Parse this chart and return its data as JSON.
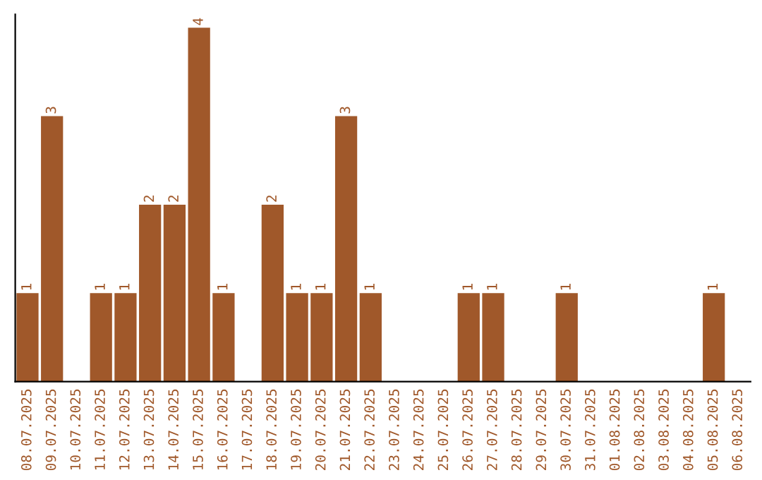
{
  "chart_data": {
    "type": "bar",
    "categories": [
      "08.07.2025",
      "09.07.2025",
      "10.07.2025",
      "11.07.2025",
      "12.07.2025",
      "13.07.2025",
      "14.07.2025",
      "15.07.2025",
      "16.07.2025",
      "17.07.2025",
      "18.07.2025",
      "19.07.2025",
      "20.07.2025",
      "21.07.2025",
      "22.07.2025",
      "23.07.2025",
      "24.07.2025",
      "25.07.2025",
      "26.07.2025",
      "27.07.2025",
      "28.07.2025",
      "29.07.2025",
      "30.07.2025",
      "31.07.2025",
      "01.08.2025",
      "02.08.2025",
      "03.08.2025",
      "04.08.2025",
      "05.08.2025",
      "06.08.2025"
    ],
    "values": [
      1,
      3,
      0,
      1,
      1,
      2,
      2,
      4,
      1,
      0,
      2,
      1,
      1,
      3,
      1,
      0,
      0,
      0,
      1,
      1,
      0,
      0,
      1,
      0,
      0,
      0,
      0,
      0,
      1,
      0
    ],
    "value_labels": [
      "1",
      "3",
      null,
      "1",
      "1",
      "2",
      "2",
      "4",
      "1",
      null,
      "2",
      "1",
      "1",
      "3",
      "1",
      null,
      null,
      null,
      "1",
      "1",
      null,
      null,
      "1",
      null,
      null,
      null,
      null,
      null,
      "1",
      null
    ],
    "color": "#a0582a",
    "ylim": [
      0,
      4.15
    ],
    "tick_labels": "x",
    "grid": false,
    "legend": false
  }
}
